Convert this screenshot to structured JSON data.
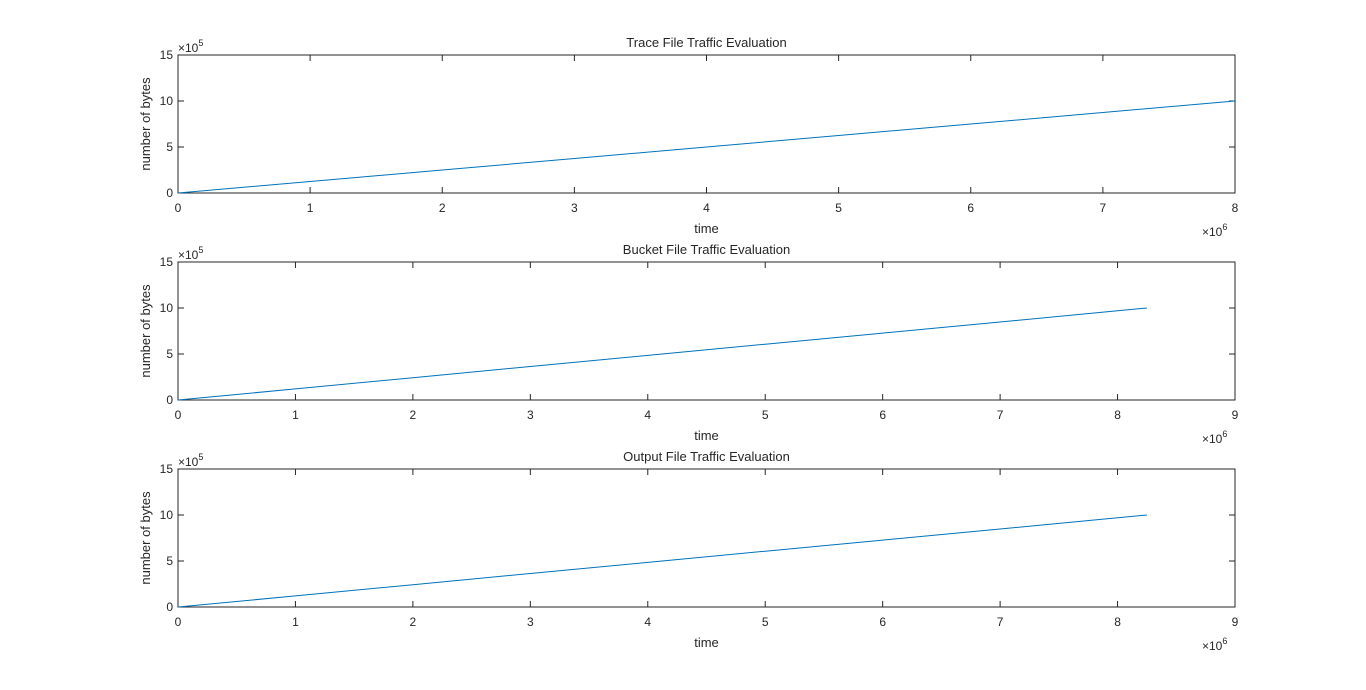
{
  "figure": {
    "background": "#ffffff",
    "line_color": "#0072BD",
    "axis_color": "#262626"
  },
  "chart_data": [
    {
      "type": "line",
      "title": "Trace File Traffic Evaluation",
      "xlabel": "time",
      "ylabel": "number of bytes",
      "x_exponent_label": "×10",
      "x_exponent": "6",
      "y_exponent_label": "×10",
      "y_exponent": "5",
      "xlim": [
        0,
        8000000
      ],
      "ylim": [
        0,
        1500000
      ],
      "xticks": [
        0,
        1000000,
        2000000,
        3000000,
        4000000,
        5000000,
        6000000,
        7000000,
        8000000
      ],
      "xtick_labels": [
        "0",
        "1",
        "2",
        "3",
        "4",
        "5",
        "6",
        "7",
        "8"
      ],
      "yticks": [
        0,
        500000,
        1000000,
        1500000
      ],
      "ytick_labels": [
        "0",
        "5",
        "10",
        "15"
      ],
      "grid": false,
      "series": [
        {
          "x": [
            0,
            1000000,
            2000000,
            3000000,
            4000000,
            5000000,
            6000000,
            7000000,
            8000000
          ],
          "y": [
            0,
            125000,
            250000,
            375000,
            500000,
            625000,
            750000,
            875000,
            1000000
          ]
        }
      ]
    },
    {
      "type": "line",
      "title": "Bucket File Traffic Evaluation",
      "xlabel": "time",
      "ylabel": "number of bytes",
      "x_exponent_label": "×10",
      "x_exponent": "6",
      "y_exponent_label": "×10",
      "y_exponent": "5",
      "xlim": [
        0,
        9000000
      ],
      "ylim": [
        0,
        1500000
      ],
      "xticks": [
        0,
        1000000,
        2000000,
        3000000,
        4000000,
        5000000,
        6000000,
        7000000,
        8000000,
        9000000
      ],
      "xtick_labels": [
        "0",
        "1",
        "2",
        "3",
        "4",
        "5",
        "6",
        "7",
        "8",
        "9"
      ],
      "yticks": [
        0,
        500000,
        1000000,
        1500000
      ],
      "ytick_labels": [
        "0",
        "5",
        "10",
        "15"
      ],
      "grid": false,
      "series": [
        {
          "x": [
            0,
            1000000,
            2000000,
            3000000,
            4000000,
            5000000,
            6000000,
            7000000,
            8000000,
            8250000
          ],
          "y": [
            0,
            121000,
            242000,
            364000,
            485000,
            606000,
            727000,
            848000,
            970000,
            1000000
          ]
        }
      ]
    },
    {
      "type": "line",
      "title": "Output File Traffic Evaluation",
      "xlabel": "time",
      "ylabel": "number of bytes",
      "x_exponent_label": "×10",
      "x_exponent": "6",
      "y_exponent_label": "×10",
      "y_exponent": "5",
      "xlim": [
        0,
        9000000
      ],
      "ylim": [
        0,
        1500000
      ],
      "xticks": [
        0,
        1000000,
        2000000,
        3000000,
        4000000,
        5000000,
        6000000,
        7000000,
        8000000,
        9000000
      ],
      "xtick_labels": [
        "0",
        "1",
        "2",
        "3",
        "4",
        "5",
        "6",
        "7",
        "8",
        "9"
      ],
      "yticks": [
        0,
        500000,
        1000000,
        1500000
      ],
      "ytick_labels": [
        "0",
        "5",
        "10",
        "15"
      ],
      "grid": false,
      "series": [
        {
          "x": [
            0,
            1000000,
            2000000,
            3000000,
            4000000,
            5000000,
            6000000,
            7000000,
            8000000,
            8250000
          ],
          "y": [
            0,
            121000,
            242000,
            364000,
            485000,
            606000,
            727000,
            848000,
            970000,
            1000000
          ]
        }
      ]
    }
  ]
}
